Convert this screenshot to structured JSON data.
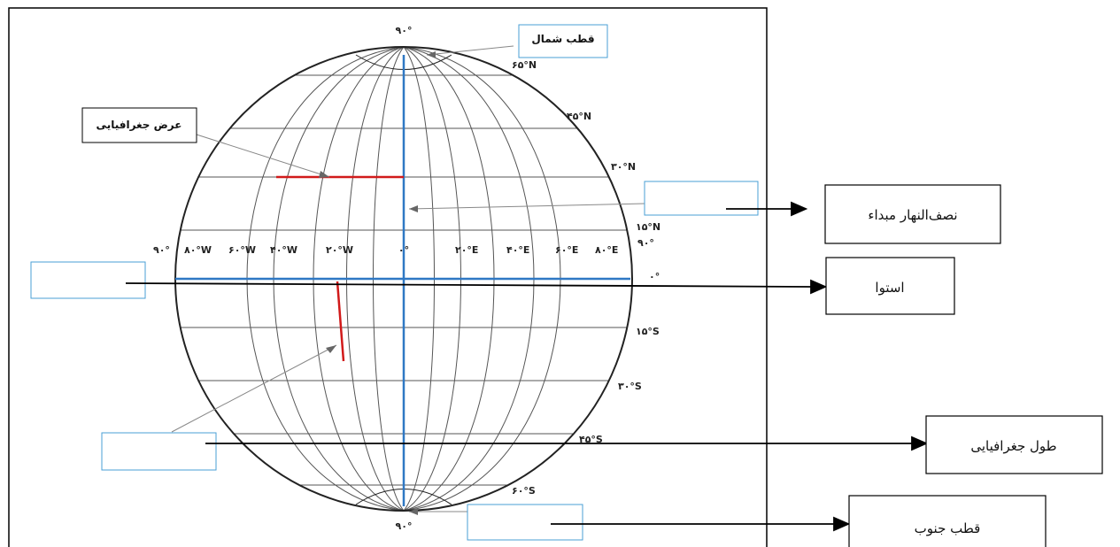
{
  "latitude_labels": {
    "top": "۹۰°",
    "n65": "۶۵°N",
    "n45": "۴۵°N",
    "n30": "۳۰°N",
    "n15": "۱۵°N",
    "right_90": "۹۰°",
    "equator": "۰°",
    "s15": "۱۵°S",
    "s30": "۳۰°S",
    "s45": "۴۵°S",
    "s60": "۶۰°S",
    "bottom": "۹۰°"
  },
  "longitude_labels": {
    "w90": "۹۰°",
    "w80": "۸۰°W",
    "w60": "۶۰°W",
    "w40": "۴۰°W",
    "w20": "۲۰°W",
    "zero": "۰°",
    "e20": "۲۰°E",
    "e40": "۴۰°E",
    "e60": "۶۰°E",
    "e80": "۸۰°E"
  },
  "callouts": {
    "north_pole": "قطب شمال",
    "latitude": "عرض جغرافیایی"
  },
  "answer_boxes": {
    "prime_meridian": "نصف‌النهار مبداء",
    "equator": "استوا",
    "longitude": "طول جغرافیایی",
    "south_pole": "قطب جنوب"
  },
  "colors": {
    "axis_blue": "#2f78c4",
    "marker_red": "#d11a1a",
    "box_border": "#4a9fd6",
    "grid_gray": "#555555"
  }
}
